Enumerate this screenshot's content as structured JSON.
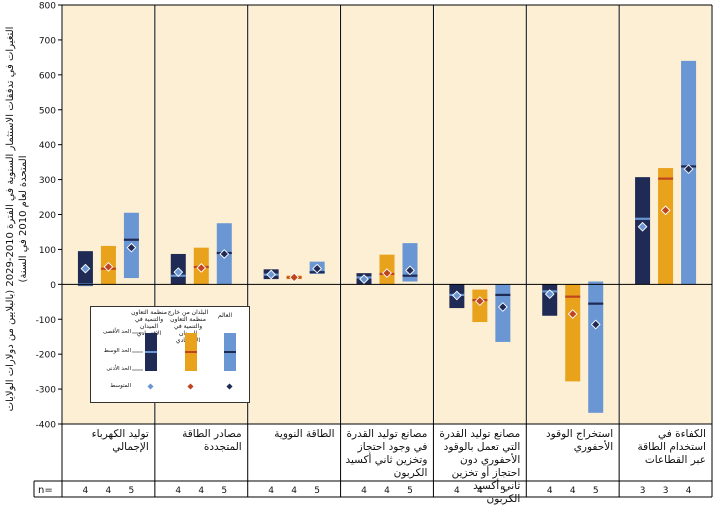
{
  "chart_data": {
    "type": "bar",
    "ylabel": "التغيرات في تدفقات الاستثمار السنوية في الفترة 2010-2029 (بالبلايين من دولارات الولايات المتحدة لعام 2010 في السنة)",
    "ylim": [
      -400,
      800
    ],
    "ytick_step": 100,
    "grid": false,
    "categories": [
      "توليد الكهرباء الإجمالي",
      "مصادر الطاقة المتجددة",
      "الطاقة النووية",
      "مصانع توليد القدرة في وجود احتجاز وتخزين ثاني أكسيد الكربون",
      "مصانع توليد القدرة التي تعمل بالوقود الأحفوري دون احتجاز أو تخزين ثاني أكسيد الكربون",
      "استخراج الوقود الأحفوري",
      "الكفاءة في استخدام الطاقة عبر القطاعات"
    ],
    "series": [
      {
        "name": "منظمة التعاون والتنمية في الميدان الاقتصادي",
        "color": "#1f2a55",
        "values": [
          {
            "min": -5,
            "median": 0,
            "max": 95,
            "mean": 45
          },
          {
            "min": 0,
            "median": 25,
            "max": 87,
            "mean": 35
          },
          {
            "min": 15,
            "median": 28,
            "max": 43,
            "mean": 28
          },
          {
            "min": 0,
            "median": 20,
            "max": 32,
            "mean": 15
          },
          {
            "min": -68,
            "median": -30,
            "max": 0,
            "mean": -32
          },
          {
            "min": -90,
            "median": -20,
            "max": 0,
            "mean": -28
          },
          {
            "min": 0,
            "median": 188,
            "max": 307,
            "mean": 165
          }
        ]
      },
      {
        "name": "البلدان من خارج منظمة التعاون والتنمية في الميدان الاقتصادي",
        "color": "#e8a21c",
        "values": [
          {
            "min": 0,
            "median": 45,
            "max": 110,
            "mean": 50
          },
          {
            "min": 0,
            "median": 50,
            "max": 105,
            "mean": 47
          },
          {
            "min": 15,
            "median": 20,
            "max": 25,
            "mean": 20
          },
          {
            "min": 0,
            "median": 30,
            "max": 85,
            "mean": 32
          },
          {
            "min": -108,
            "median": -45,
            "max": -15,
            "mean": -48
          },
          {
            "min": -278,
            "median": -35,
            "max": 0,
            "mean": -85
          },
          {
            "min": 0,
            "median": 303,
            "max": 333,
            "mean": 212
          }
        ]
      },
      {
        "name": "العالم",
        "color": "#6a97d4",
        "values": [
          {
            "min": 18,
            "median": 128,
            "max": 205,
            "mean": 105
          },
          {
            "min": 0,
            "median": 90,
            "max": 175,
            "mean": 87
          },
          {
            "min": 30,
            "median": 35,
            "max": 65,
            "mean": 45
          },
          {
            "min": 8,
            "median": 25,
            "max": 118,
            "mean": 40
          },
          {
            "min": -165,
            "median": -30,
            "max": 0,
            "mean": -65
          },
          {
            "min": -368,
            "median": -55,
            "max": 8,
            "mean": -115
          },
          {
            "min": 0,
            "median": 338,
            "max": 640,
            "mean": 330
          }
        ]
      }
    ],
    "n_label": "n=",
    "n_values": [
      [
        4,
        4,
        5
      ],
      [
        4,
        4,
        5
      ],
      [
        4,
        4,
        5
      ],
      [
        4,
        4,
        5
      ],
      [
        4,
        4,
        5
      ],
      [
        4,
        4,
        5
      ],
      [
        3,
        3,
        4
      ]
    ],
    "legend": {
      "headers": [
        "منظمة التعاون والتنمية في الميدان الاقتصادي",
        "البلدان من خارج منظمة التعاون والتنمية في الميدان الاقتصادي",
        "العالم"
      ],
      "labels": {
        "max": "الحد الأقصى",
        "median": "الحد الوسط",
        "min": "الحد الأدنى",
        "mean": "المتوسط"
      }
    },
    "colors": {
      "panel_background": "#fcefd4",
      "axis": "#000000"
    }
  }
}
